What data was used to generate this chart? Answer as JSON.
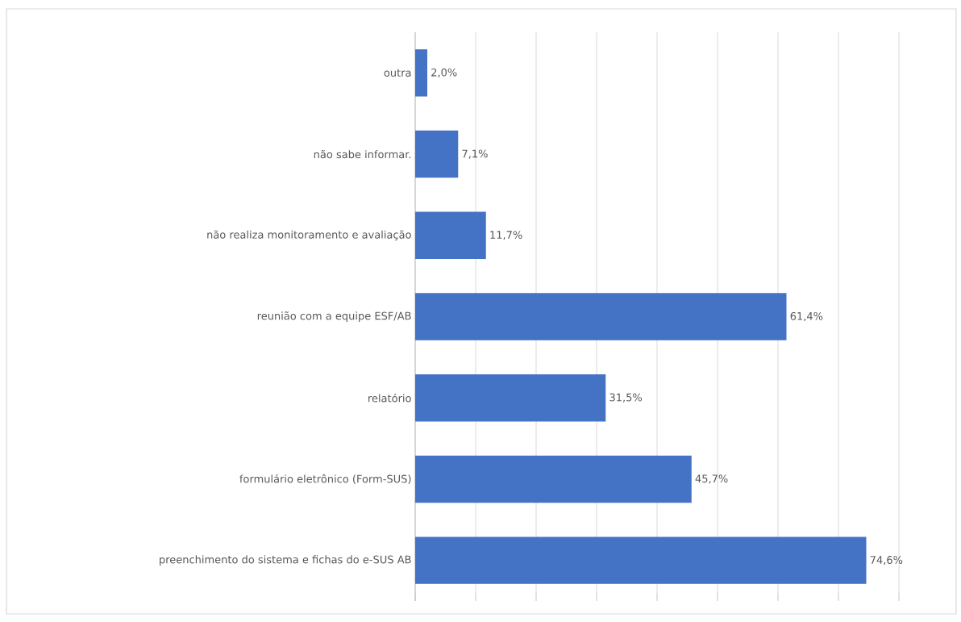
{
  "chart_data": {
    "type": "bar",
    "orientation": "horizontal",
    "categories": [
      "outra",
      "não sabe informar.",
      "não realiza monitoramento e avaliação",
      "reunião com a equipe ESF/AB",
      "relatório",
      "formulário eletrônico (Form-SUS)",
      "preenchimento do sistema e fichas do e-SUS AB"
    ],
    "values": [
      2.0,
      7.1,
      11.7,
      61.4,
      31.5,
      45.7,
      74.6
    ],
    "value_labels": [
      "2,0%",
      "7,1%",
      "11,7%",
      "61,4%",
      "31,5%",
      "45,7%",
      "74,6%"
    ],
    "color": "#4472c4",
    "xlim": [
      0,
      80
    ],
    "xticks": [
      {
        "value": 0,
        "label": null
      },
      {
        "value": 10,
        "label": null
      },
      {
        "value": 20,
        "label": null
      },
      {
        "value": 30,
        "label": null
      },
      {
        "value": 40,
        "label": null
      },
      {
        "value": 50,
        "label": null
      },
      {
        "value": 60,
        "label": null
      },
      {
        "value": 70,
        "label": null
      },
      {
        "value": 80,
        "label": null
      }
    ],
    "grid": "x",
    "tick_labels": "y"
  }
}
